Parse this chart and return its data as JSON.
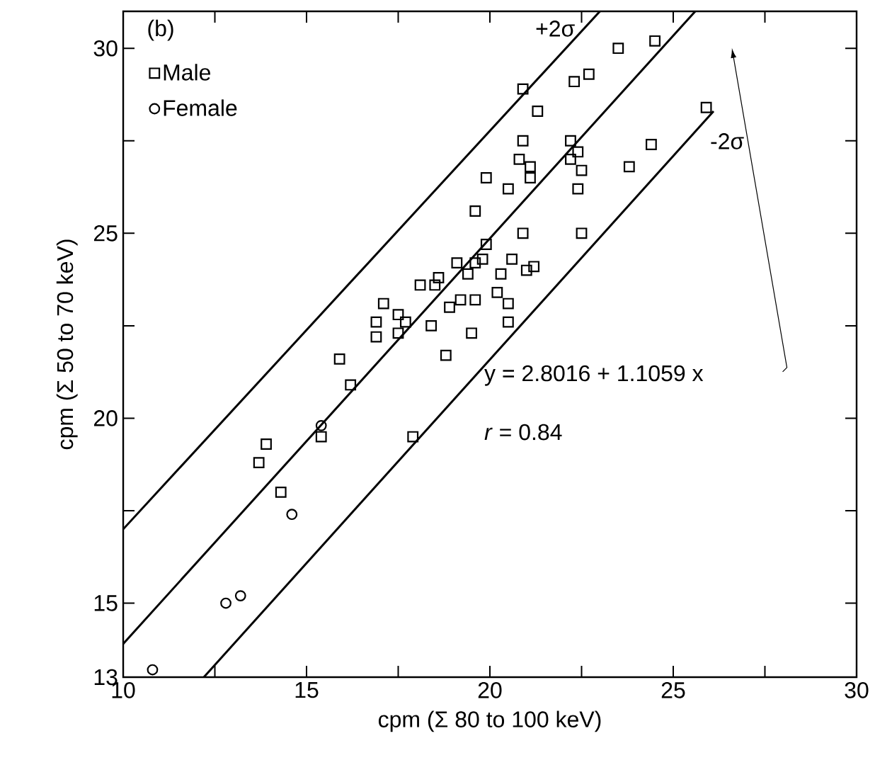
{
  "chart_data": {
    "type": "scatter",
    "xlabel": "cpm (Σ 80 to 100 keV)",
    "ylabel": "cpm (Σ 50 to 70 keV)",
    "xlim": [
      10,
      30
    ],
    "ylim": [
      13,
      31
    ],
    "xticks": [
      10,
      {
        "value": 12.5,
        "label": null
      },
      15,
      {
        "value": 17.5,
        "label": null
      },
      20,
      {
        "value": 22.5,
        "label": null
      },
      25,
      {
        "value": 27.5,
        "label": null
      },
      30
    ],
    "yticks": [
      13,
      15,
      {
        "value": 17.5,
        "label": null
      },
      20,
      {
        "value": 22.5,
        "label": null
      },
      25,
      {
        "value": 27.5,
        "label": null
      },
      30
    ],
    "legend": "top left",
    "grid": false,
    "annotations": [
      "(b)",
      "y  =  2.8016 + 1.1059 x",
      "*r*  =  0.84"
    ],
    "series": [
      {
        "name": "Male",
        "marker": "square",
        "color": "#000000",
        "x": [
          19.9,
          19.6,
          19.9,
          19.8,
          19.6,
          19.1,
          19.4,
          20.3,
          18.6,
          18.5,
          18.1,
          17.1,
          20.2,
          19.2,
          19.6,
          18.9,
          17.5,
          17.7,
          16.9,
          16.9,
          17.5,
          18.4,
          19.5,
          20.5,
          20.5,
          18.8,
          15.9,
          16.2,
          23.5,
          24.5,
          20.9,
          22.3,
          22.7,
          21.3,
          25.9,
          20.9,
          22.2,
          22.4,
          24.4,
          20.8,
          21.1,
          22.2,
          22.5,
          23.8,
          21.1,
          20.5,
          22.4,
          20.9,
          22.5,
          20.6,
          21.0,
          21.2,
          15.4,
          13.9,
          13.7,
          17.9,
          14.3
        ],
        "values": [
          26.5,
          25.6,
          24.7,
          24.3,
          24.2,
          24.2,
          23.9,
          23.9,
          23.8,
          23.6,
          23.6,
          23.1,
          23.4,
          23.2,
          23.2,
          23.0,
          22.8,
          22.6,
          22.6,
          22.2,
          22.3,
          22.5,
          22.3,
          23.1,
          22.6,
          21.7,
          21.6,
          20.9,
          30.0,
          30.2,
          28.9,
          29.1,
          29.3,
          28.3,
          28.4,
          27.5,
          27.5,
          27.2,
          27.4,
          27.0,
          26.8,
          27.0,
          26.7,
          26.8,
          26.5,
          26.2,
          26.2,
          25.0,
          25.0,
          24.3,
          24.0,
          24.1,
          19.5,
          19.3,
          18.8,
          19.5,
          18.0
        ]
      },
      {
        "name": "Female",
        "marker": "circle",
        "color": "#000000",
        "x": [
          15.4,
          14.6,
          12.8,
          13.2,
          10.8
        ],
        "values": [
          19.8,
          17.4,
          15.0,
          15.2,
          13.2
        ]
      },
      {
        "name": "+2σ",
        "type": "line",
        "color": "#000000",
        "x": [
          10,
          23.0
        ],
        "values": [
          17.0,
          31
        ]
      },
      {
        "type": "line",
        "color": "#000000",
        "x": [
          10,
          25.6
        ],
        "values": [
          13.9,
          31
        ]
      },
      {
        "name": "-2σ",
        "type": "line",
        "color": "#000000",
        "x": [
          12.2,
          26.1
        ],
        "values": [
          13,
          28.3
        ]
      }
    ]
  }
}
